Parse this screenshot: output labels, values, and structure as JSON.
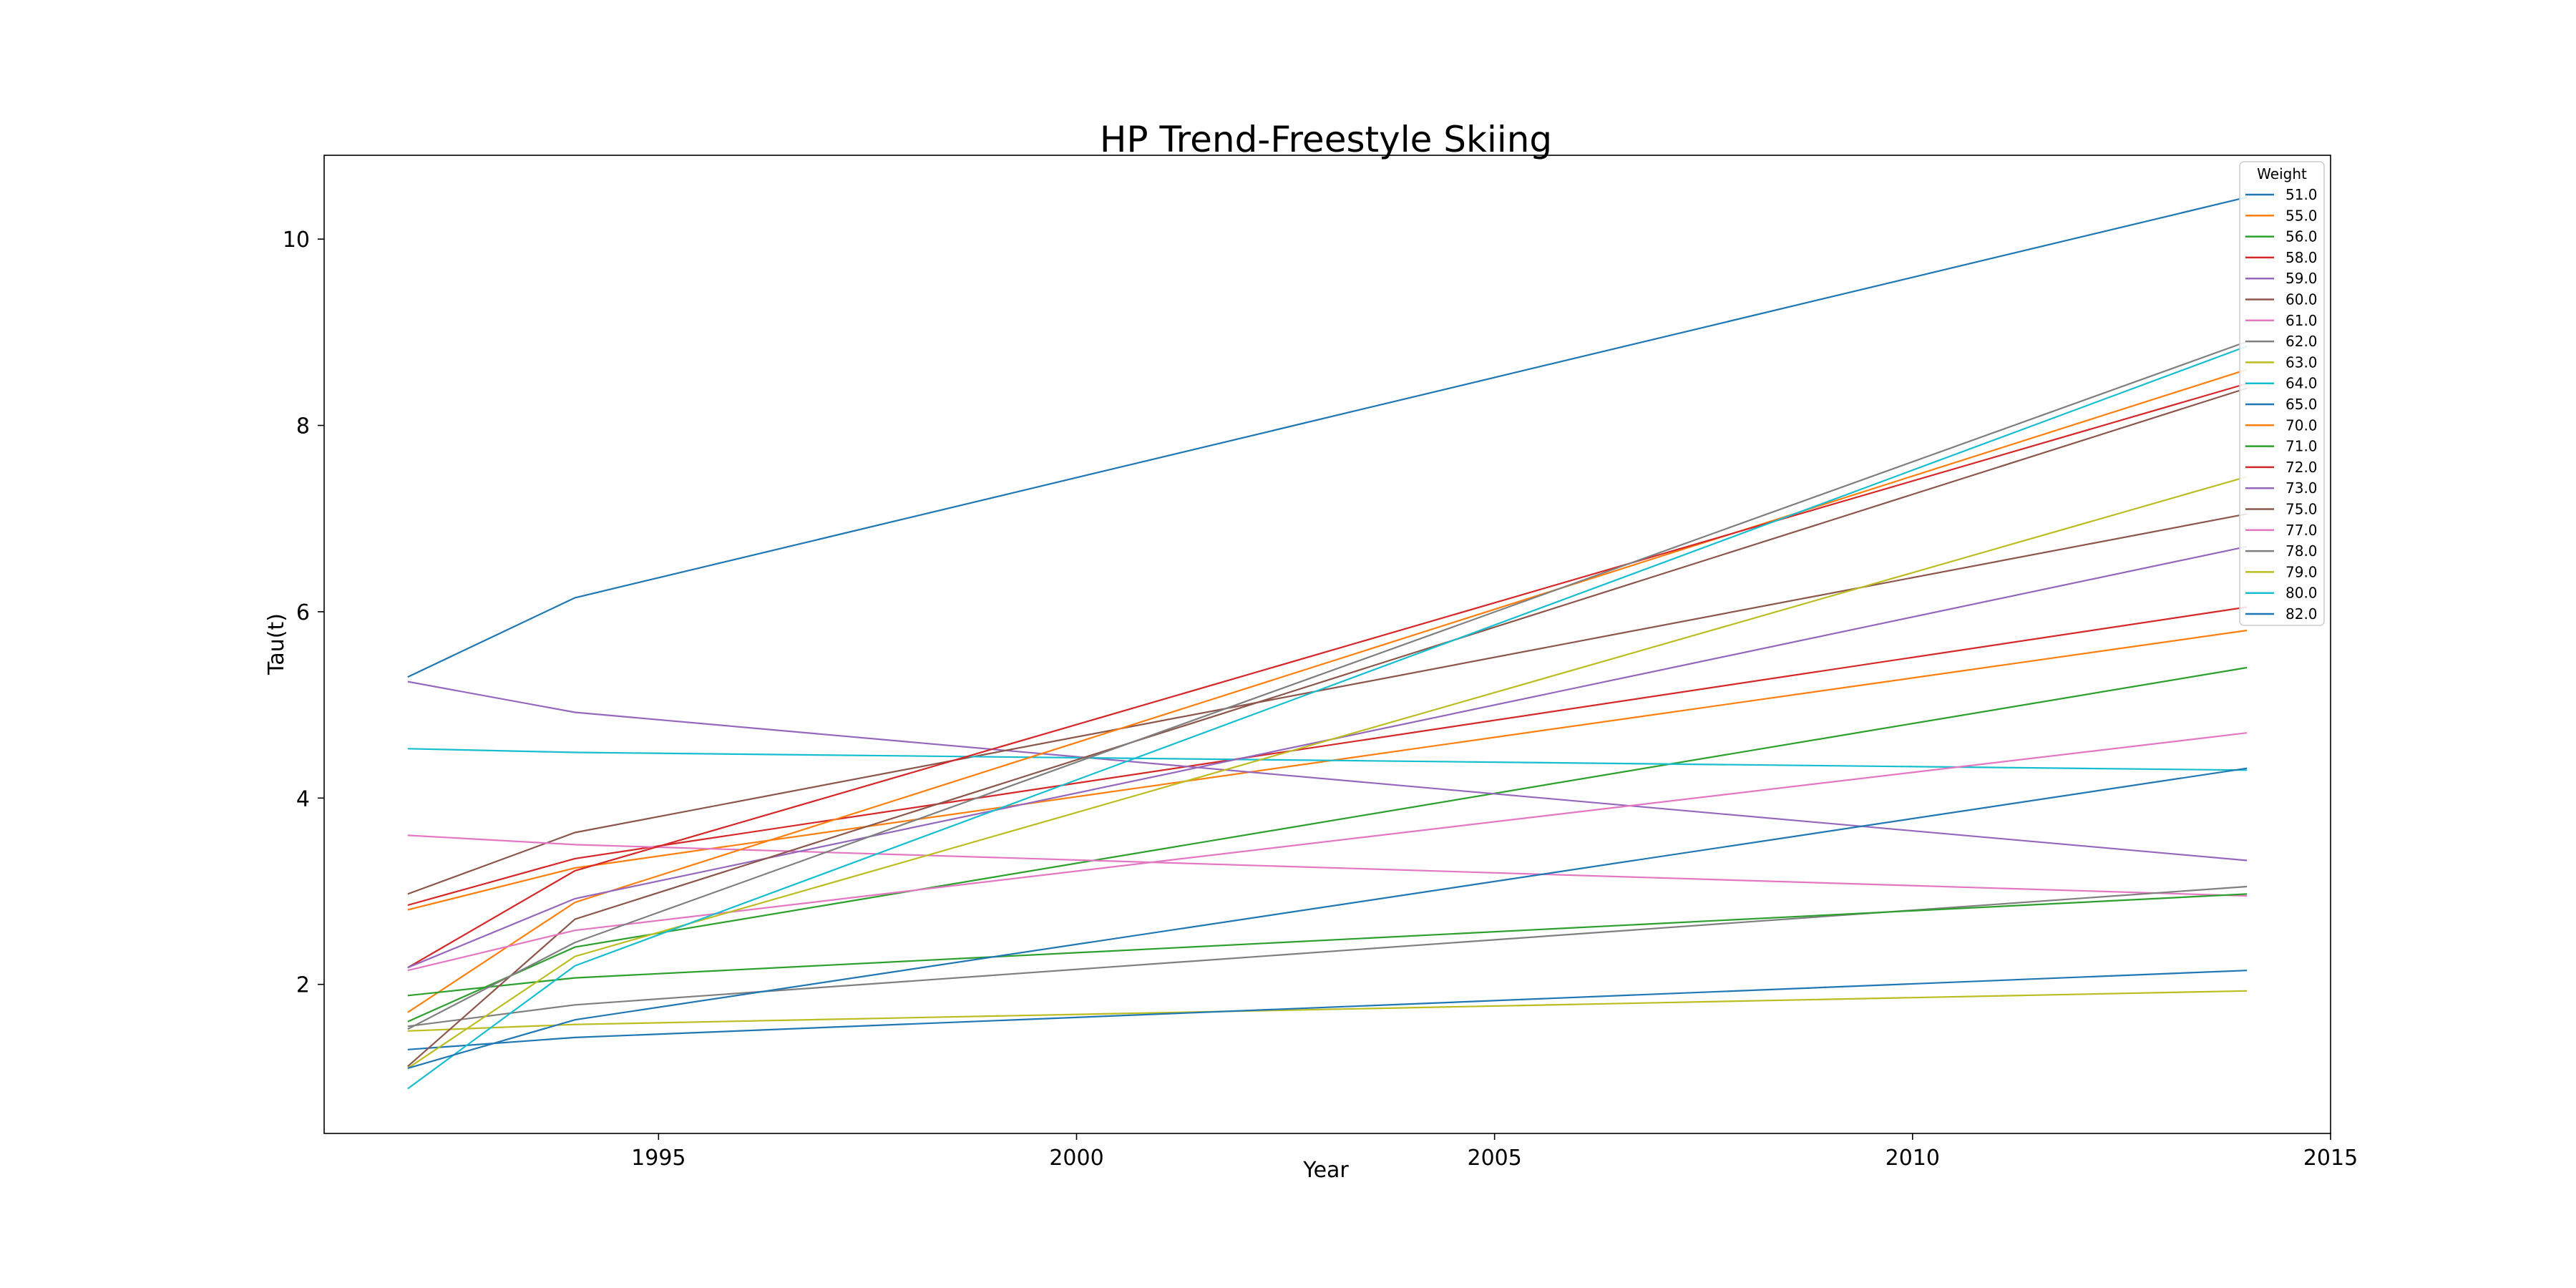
{
  "chart_data": {
    "type": "line",
    "title": "HP Trend-Freestyle Skiing",
    "xlabel": "Year",
    "ylabel": "Tau(t)",
    "xlim": [
      1991,
      2015
    ],
    "ylim": [
      0.4,
      10.9
    ],
    "xticks": [
      1995,
      2000,
      2005,
      2010,
      2015
    ],
    "yticks": [
      2,
      4,
      6,
      8,
      10
    ],
    "grid": false,
    "legend": {
      "title": "Weight",
      "placement": "upper-right"
    },
    "series": [
      {
        "name": "51.0",
        "color": "#1f77b4",
        "x": [
          1992,
          1994,
          2014
        ],
        "y": [
          5.3,
          6.15,
          10.45
        ]
      },
      {
        "name": "55.0",
        "color": "#ff7f0e",
        "x": [
          1992,
          1994,
          2014
        ],
        "y": [
          2.8,
          3.25,
          5.8
        ]
      },
      {
        "name": "56.0",
        "color": "#2ca02c",
        "x": [
          1992,
          1994,
          2014
        ],
        "y": [
          1.6,
          2.4,
          5.4
        ]
      },
      {
        "name": "58.0",
        "color": "#d62728",
        "x": [
          1992,
          1994,
          2014
        ],
        "y": [
          2.85,
          3.35,
          6.05
        ]
      },
      {
        "name": "59.0",
        "color": "#9467bd",
        "x": [
          1992,
          1994,
          2014
        ],
        "y": [
          5.25,
          4.92,
          3.33
        ]
      },
      {
        "name": "60.0",
        "color": "#8c564b",
        "x": [
          1992,
          1994,
          2014
        ],
        "y": [
          2.97,
          3.63,
          7.05
        ]
      },
      {
        "name": "61.0",
        "color": "#e377c2",
        "x": [
          1992,
          1994,
          2014
        ],
        "y": [
          3.6,
          3.5,
          2.95
        ]
      },
      {
        "name": "62.0",
        "color": "#7f7f7f",
        "x": [
          1992,
          1994,
          2014
        ],
        "y": [
          1.55,
          1.78,
          3.05
        ]
      },
      {
        "name": "63.0",
        "color": "#bcbd22",
        "x": [
          1992,
          1994,
          2014
        ],
        "y": [
          1.5,
          1.57,
          1.93
        ]
      },
      {
        "name": "64.0",
        "color": "#17becf",
        "x": [
          1992,
          1994,
          2014
        ],
        "y": [
          4.53,
          4.49,
          4.3
        ]
      },
      {
        "name": "65.0",
        "color": "#1f77b4",
        "x": [
          1992,
          1994,
          2014
        ],
        "y": [
          1.3,
          1.43,
          2.15
        ]
      },
      {
        "name": "70.0",
        "color": "#ff7f0e",
        "x": [
          1992,
          1994,
          2014
        ],
        "y": [
          1.7,
          2.88,
          8.6
        ]
      },
      {
        "name": "71.0",
        "color": "#2ca02c",
        "x": [
          1992,
          1994,
          2014
        ],
        "y": [
          1.88,
          2.07,
          2.97
        ]
      },
      {
        "name": "72.0",
        "color": "#d62728",
        "x": [
          1992,
          1994,
          2014
        ],
        "y": [
          2.18,
          3.22,
          8.45
        ]
      },
      {
        "name": "73.0",
        "color": "#9467bd",
        "x": [
          1992,
          1994,
          2014
        ],
        "y": [
          2.18,
          2.92,
          6.7
        ]
      },
      {
        "name": "75.0",
        "color": "#8c564b",
        "x": [
          1992,
          1994,
          2014
        ],
        "y": [
          1.12,
          2.7,
          8.4
        ]
      },
      {
        "name": "77.0",
        "color": "#e377c2",
        "x": [
          1992,
          1994,
          2014
        ],
        "y": [
          2.15,
          2.58,
          4.7
        ]
      },
      {
        "name": "78.0",
        "color": "#7f7f7f",
        "x": [
          1992,
          1994,
          2014
        ],
        "y": [
          1.52,
          2.45,
          8.9
        ]
      },
      {
        "name": "79.0",
        "color": "#bcbd22",
        "x": [
          1992,
          1994,
          2014
        ],
        "y": [
          1.1,
          2.3,
          7.45
        ]
      },
      {
        "name": "80.0",
        "color": "#17becf",
        "x": [
          1992,
          1994,
          2014
        ],
        "y": [
          0.88,
          2.2,
          8.85
        ]
      },
      {
        "name": "82.0",
        "color": "#1f77b4",
        "x": [
          1992,
          1994,
          2014
        ],
        "y": [
          1.1,
          1.62,
          4.32
        ]
      }
    ]
  }
}
